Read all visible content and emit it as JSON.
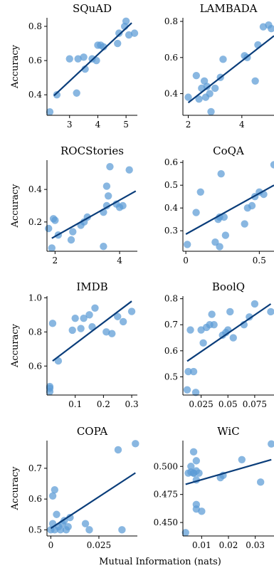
{
  "figure": {
    "ylabel": "Accuracy",
    "xlabel": "Mutual Information (nats)",
    "point_color": "#5b9bd5",
    "line_color": "#0a3d7a"
  },
  "chart_data": [
    {
      "type": "scatter",
      "title": "SQuAD",
      "xlim": [
        2.2,
        5.4
      ],
      "ylim": [
        0.28,
        0.85
      ],
      "xticks": [
        3,
        4,
        5
      ],
      "yticks": [
        0.4,
        0.6,
        0.8
      ],
      "ytick_labels": [
        "0.4",
        "0.6",
        "0.8"
      ],
      "points": [
        [
          2.3,
          0.3
        ],
        [
          2.55,
          0.4
        ],
        [
          3.0,
          0.61
        ],
        [
          3.3,
          0.61
        ],
        [
          3.25,
          0.41
        ],
        [
          3.5,
          0.62
        ],
        [
          3.55,
          0.55
        ],
        [
          3.8,
          0.61
        ],
        [
          3.95,
          0.6
        ],
        [
          4.0,
          0.69
        ],
        [
          4.1,
          0.69
        ],
        [
          4.2,
          0.68
        ],
        [
          4.7,
          0.7
        ],
        [
          4.75,
          0.76
        ],
        [
          4.95,
          0.8
        ],
        [
          5.0,
          0.83
        ],
        [
          5.1,
          0.75
        ],
        [
          5.3,
          0.76
        ]
      ],
      "fit": [
        [
          2.45,
          0.395
        ],
        [
          5.2,
          0.82
        ]
      ]
    },
    {
      "type": "scatter",
      "title": "LAMBADA",
      "xlim": [
        1.8,
        5.2
      ],
      "ylim": [
        0.28,
        0.82
      ],
      "xticks": [
        2,
        4
      ],
      "yticks": [
        0.4,
        0.6,
        0.8
      ],
      "ytick_labels": [
        "0.4",
        "0.6",
        "0.8"
      ],
      "points": [
        [
          2.0,
          0.38
        ],
        [
          2.3,
          0.5
        ],
        [
          2.4,
          0.37
        ],
        [
          2.5,
          0.43
        ],
        [
          2.6,
          0.47
        ],
        [
          2.65,
          0.38
        ],
        [
          2.7,
          0.44
        ],
        [
          2.8,
          0.4
        ],
        [
          2.85,
          0.3
        ],
        [
          3.0,
          0.43
        ],
        [
          3.2,
          0.49
        ],
        [
          3.3,
          0.59
        ],
        [
          4.1,
          0.61
        ],
        [
          4.2,
          0.6
        ],
        [
          4.5,
          0.47
        ],
        [
          4.6,
          0.67
        ],
        [
          4.8,
          0.77
        ],
        [
          5.0,
          0.78
        ],
        [
          5.1,
          0.76
        ]
      ],
      "fit": [
        [
          2.0,
          0.35
        ],
        [
          5.2,
          0.72
        ]
      ]
    },
    {
      "type": "scatter",
      "title": "ROCStories",
      "xlim": [
        1.75,
        4.55
      ],
      "ylim": [
        0.02,
        0.58
      ],
      "xticks": [
        2,
        4
      ],
      "yticks": [
        0.2,
        0.4
      ],
      "ytick_labels": [
        "0.2",
        "0.4"
      ],
      "points": [
        [
          1.8,
          0.16
        ],
        [
          1.9,
          0.04
        ],
        [
          1.95,
          0.22
        ],
        [
          2.0,
          0.21
        ],
        [
          2.1,
          0.12
        ],
        [
          2.5,
          0.09
        ],
        [
          2.55,
          0.14
        ],
        [
          2.8,
          0.18
        ],
        [
          2.9,
          0.2
        ],
        [
          3.0,
          0.23
        ],
        [
          3.5,
          0.05
        ],
        [
          3.5,
          0.26
        ],
        [
          3.6,
          0.3
        ],
        [
          3.6,
          0.42
        ],
        [
          3.65,
          0.36
        ],
        [
          3.7,
          0.54
        ],
        [
          3.9,
          0.31
        ],
        [
          4.0,
          0.29
        ],
        [
          4.1,
          0.3
        ],
        [
          4.3,
          0.52
        ]
      ],
      "fit": [
        [
          1.9,
          0.1
        ],
        [
          4.5,
          0.39
        ]
      ]
    },
    {
      "type": "scatter",
      "title": "CoQA",
      "xlim": [
        -0.02,
        0.6
      ],
      "ylim": [
        0.21,
        0.61
      ],
      "xticks": [
        0.0,
        0.5
      ],
      "yticks": [
        0.3,
        0.4,
        0.5,
        0.6
      ],
      "ytick_labels": [
        "0.3",
        "0.4",
        "0.5",
        "0.6"
      ],
      "points": [
        [
          0.01,
          0.24
        ],
        [
          0.07,
          0.38
        ],
        [
          0.1,
          0.47
        ],
        [
          0.2,
          0.25
        ],
        [
          0.22,
          0.35
        ],
        [
          0.23,
          0.23
        ],
        [
          0.23,
          0.36
        ],
        [
          0.24,
          0.55
        ],
        [
          0.26,
          0.36
        ],
        [
          0.27,
          0.28
        ],
        [
          0.4,
          0.33
        ],
        [
          0.42,
          0.4
        ],
        [
          0.45,
          0.41
        ],
        [
          0.47,
          0.45
        ],
        [
          0.5,
          0.47
        ],
        [
          0.53,
          0.46
        ],
        [
          0.6,
          0.59
        ]
      ],
      "fit": [
        [
          0.0,
          0.285
        ],
        [
          0.6,
          0.5
        ]
      ]
    },
    {
      "type": "scatter",
      "title": "IMDB",
      "xlim": [
        0.0,
        0.32
      ],
      "ylim": [
        0.43,
        1.01
      ],
      "xticks": [
        0.1,
        0.2,
        0.3
      ],
      "yticks": [
        0.6,
        0.8,
        1.0
      ],
      "ytick_labels": [
        "0.6",
        "0.8",
        "1.0"
      ],
      "points": [
        [
          0.01,
          0.45
        ],
        [
          0.01,
          0.47
        ],
        [
          0.01,
          0.48
        ],
        [
          0.02,
          0.85
        ],
        [
          0.04,
          0.63
        ],
        [
          0.09,
          0.81
        ],
        [
          0.1,
          0.88
        ],
        [
          0.12,
          0.82
        ],
        [
          0.13,
          0.88
        ],
        [
          0.15,
          0.9
        ],
        [
          0.16,
          0.83
        ],
        [
          0.17,
          0.94
        ],
        [
          0.21,
          0.8
        ],
        [
          0.23,
          0.79
        ],
        [
          0.25,
          0.89
        ],
        [
          0.27,
          0.86
        ],
        [
          0.3,
          0.92
        ]
      ],
      "fit": [
        [
          0.02,
          0.63
        ],
        [
          0.3,
          0.98
        ]
      ]
    },
    {
      "type": "scatter",
      "title": "BoolQ",
      "xlim": [
        0.008,
        0.093
      ],
      "ylim": [
        0.43,
        0.81
      ],
      "xticks": [
        0.025,
        0.05,
        0.075
      ],
      "yticks": [
        0.5,
        0.6,
        0.7,
        0.8
      ],
      "ytick_labels": [
        "0.5",
        "0.6",
        "0.7",
        "0.8"
      ],
      "points": [
        [
          0.012,
          0.45
        ],
        [
          0.013,
          0.52
        ],
        [
          0.015,
          0.68
        ],
        [
          0.018,
          0.52
        ],
        [
          0.02,
          0.44
        ],
        [
          0.025,
          0.68
        ],
        [
          0.027,
          0.63
        ],
        [
          0.03,
          0.69
        ],
        [
          0.033,
          0.7
        ],
        [
          0.035,
          0.74
        ],
        [
          0.037,
          0.7
        ],
        [
          0.045,
          0.66
        ],
        [
          0.048,
          0.67
        ],
        [
          0.05,
          0.68
        ],
        [
          0.052,
          0.75
        ],
        [
          0.055,
          0.65
        ],
        [
          0.065,
          0.7
        ],
        [
          0.07,
          0.73
        ],
        [
          0.075,
          0.78
        ],
        [
          0.09,
          0.75
        ]
      ],
      "fit": [
        [
          0.012,
          0.56
        ],
        [
          0.09,
          0.78
        ]
      ]
    },
    {
      "type": "scatter",
      "title": "COPA",
      "xlim": [
        -0.002,
        0.045
      ],
      "ylim": [
        0.48,
        0.79
      ],
      "xticks": [
        0.0,
        0.025
      ],
      "yticks": [
        0.5,
        0.6,
        0.7
      ],
      "ytick_labels": [
        "0.5",
        "0.6",
        "0.7"
      ],
      "points": [
        [
          0.0,
          0.5
        ],
        [
          0.001,
          0.52
        ],
        [
          0.001,
          0.61
        ],
        [
          0.002,
          0.63
        ],
        [
          0.002,
          0.5
        ],
        [
          0.003,
          0.55
        ],
        [
          0.004,
          0.51
        ],
        [
          0.005,
          0.5
        ],
        [
          0.006,
          0.52
        ],
        [
          0.007,
          0.53
        ],
        [
          0.008,
          0.5
        ],
        [
          0.009,
          0.51
        ],
        [
          0.01,
          0.54
        ],
        [
          0.018,
          0.52
        ],
        [
          0.02,
          0.5
        ],
        [
          0.035,
          0.76
        ],
        [
          0.037,
          0.5
        ],
        [
          0.044,
          0.78
        ]
      ],
      "fit": [
        [
          0.0,
          0.505
        ],
        [
          0.044,
          0.685
        ]
      ]
    },
    {
      "type": "scatter",
      "title": "WiC",
      "xlim": [
        0.003,
        0.037
      ],
      "ylim": [
        0.438,
        0.523
      ],
      "xticks": [
        0.01,
        0.02,
        0.03
      ],
      "yticks": [
        0.45,
        0.475,
        0.5
      ],
      "ytick_labels": [
        "0.450",
        "0.475",
        "0.500"
      ],
      "points": [
        [
          0.004,
          0.441
        ],
        [
          0.005,
          0.494
        ],
        [
          0.006,
          0.495
        ],
        [
          0.006,
          0.5
        ],
        [
          0.007,
          0.513
        ],
        [
          0.007,
          0.494
        ],
        [
          0.007,
          0.494
        ],
        [
          0.008,
          0.496
        ],
        [
          0.008,
          0.462
        ],
        [
          0.008,
          0.466
        ],
        [
          0.008,
          0.505
        ],
        [
          0.008,
          0.488
        ],
        [
          0.009,
          0.494
        ],
        [
          0.01,
          0.46
        ],
        [
          0.017,
          0.49
        ],
        [
          0.018,
          0.492
        ],
        [
          0.025,
          0.506
        ],
        [
          0.032,
          0.486
        ],
        [
          0.036,
          0.52
        ]
      ],
      "fit": [
        [
          0.004,
          0.484
        ],
        [
          0.036,
          0.506
        ]
      ]
    }
  ]
}
